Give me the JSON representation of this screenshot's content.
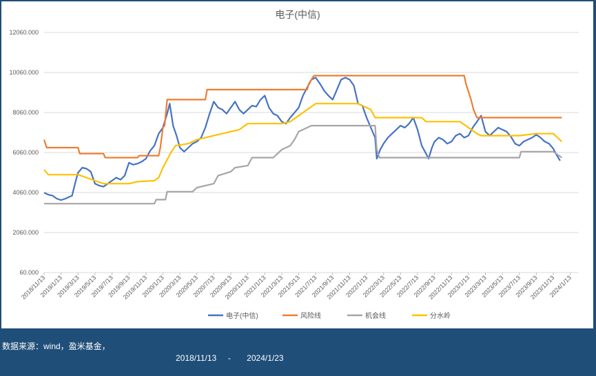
{
  "footer": {
    "source": "数据来源：wind，盈米基金，",
    "range": "2018/11/13     -       2024/1/23"
  },
  "chart_data": {
    "type": "line",
    "title": "电子(中信)",
    "ylim": [
      60,
      12060
    ],
    "yticks": [
      "12060.000",
      "10060.000",
      "8060.000",
      "6060.000",
      "4060.000",
      "2060.000",
      "60.000"
    ],
    "xticks": [
      "2018/11/13",
      "2019/1/13",
      "2019/3/13",
      "2019/5/13",
      "2019/7/13",
      "2019/9/13",
      "2019/11/13",
      "2020/1/13",
      "2020/3/13",
      "2020/5/13",
      "2020/7/13",
      "2020/9/13",
      "2020/11/13",
      "2021/1/13",
      "2021/3/13",
      "2021/5/13",
      "2021/7/13",
      "2021/9/13",
      "2021/11/13",
      "2022/1/13",
      "2022/3/13",
      "2022/5/13",
      "2022/7/13",
      "2022/9/13",
      "2022/11/13",
      "2023/1/13",
      "2023/3/13",
      "2023/5/13",
      "2023/7/13",
      "2023/9/13",
      "2023/11/13",
      "2024/1/13"
    ],
    "grid": true,
    "legend_position": "bottom",
    "x_unit": "months since 2018/11/13",
    "series": [
      {
        "name": "电子(中信)",
        "color": "#4472c4",
        "points": [
          [
            0,
            4050
          ],
          [
            0.5,
            3950
          ],
          [
            1,
            3900
          ],
          [
            1.5,
            3750
          ],
          [
            2,
            3680
          ],
          [
            2.5,
            3750
          ],
          [
            3,
            3850
          ],
          [
            3.3,
            3900
          ],
          [
            3.7,
            4600
          ],
          [
            4,
            5050
          ],
          [
            4.5,
            5300
          ],
          [
            5,
            5250
          ],
          [
            5.5,
            5100
          ],
          [
            6,
            4500
          ],
          [
            6.5,
            4400
          ],
          [
            7,
            4350
          ],
          [
            7.5,
            4500
          ],
          [
            8,
            4650
          ],
          [
            8.5,
            4800
          ],
          [
            9,
            4700
          ],
          [
            9.5,
            4900
          ],
          [
            10,
            5550
          ],
          [
            10.5,
            5450
          ],
          [
            11,
            5500
          ],
          [
            11.5,
            5600
          ],
          [
            12,
            5750
          ],
          [
            12.5,
            6150
          ],
          [
            13,
            6400
          ],
          [
            13.5,
            7000
          ],
          [
            14,
            7300
          ],
          [
            14.5,
            8000
          ],
          [
            14.8,
            8500
          ],
          [
            15.2,
            7400
          ],
          [
            15.6,
            6900
          ],
          [
            16,
            6300
          ],
          [
            16.5,
            6100
          ],
          [
            17,
            6300
          ],
          [
            17.5,
            6500
          ],
          [
            18,
            6600
          ],
          [
            18.5,
            6800
          ],
          [
            19,
            7300
          ],
          [
            19.5,
            8000
          ],
          [
            20,
            8600
          ],
          [
            20.5,
            8300
          ],
          [
            21,
            8200
          ],
          [
            21.5,
            8000
          ],
          [
            22,
            8300
          ],
          [
            22.5,
            8600
          ],
          [
            23,
            8200
          ],
          [
            23.5,
            8000
          ],
          [
            24,
            8200
          ],
          [
            24.5,
            8400
          ],
          [
            25,
            8350
          ],
          [
            25.5,
            8700
          ],
          [
            26,
            8900
          ],
          [
            26.5,
            8300
          ],
          [
            27,
            8000
          ],
          [
            27.5,
            7900
          ],
          [
            28,
            7600
          ],
          [
            28.5,
            7500
          ],
          [
            29,
            7800
          ],
          [
            29.5,
            8050
          ],
          [
            30,
            8300
          ],
          [
            30.5,
            8900
          ],
          [
            31,
            9300
          ],
          [
            31.5,
            9700
          ],
          [
            32,
            9800
          ],
          [
            32.5,
            9500
          ],
          [
            33,
            9150
          ],
          [
            33.5,
            8900
          ],
          [
            34,
            8700
          ],
          [
            34.5,
            9200
          ],
          [
            35,
            9700
          ],
          [
            35.5,
            9800
          ],
          [
            36,
            9700
          ],
          [
            36.5,
            9400
          ],
          [
            37,
            8500
          ],
          [
            37.5,
            8400
          ],
          [
            38,
            7800
          ],
          [
            38.5,
            7300
          ],
          [
            39,
            6800
          ],
          [
            39.2,
            5750
          ],
          [
            39.6,
            6200
          ],
          [
            40,
            6500
          ],
          [
            40.5,
            6800
          ],
          [
            41,
            7000
          ],
          [
            41.5,
            7200
          ],
          [
            42,
            7400
          ],
          [
            42.5,
            7300
          ],
          [
            43,
            7500
          ],
          [
            43.5,
            7800
          ],
          [
            44,
            7200
          ],
          [
            44.5,
            6400
          ],
          [
            45,
            6000
          ],
          [
            45.3,
            5750
          ],
          [
            45.7,
            6300
          ],
          [
            46,
            6600
          ],
          [
            46.5,
            6800
          ],
          [
            47,
            6700
          ],
          [
            47.5,
            6500
          ],
          [
            48,
            6600
          ],
          [
            48.5,
            6900
          ],
          [
            49,
            7000
          ],
          [
            49.5,
            6800
          ],
          [
            50,
            6900
          ],
          [
            50.5,
            7300
          ],
          [
            51,
            7600
          ],
          [
            51.5,
            7900
          ],
          [
            52,
            7100
          ],
          [
            52.5,
            6900
          ],
          [
            53,
            7100
          ],
          [
            53.5,
            7300
          ],
          [
            54,
            7200
          ],
          [
            54.5,
            7100
          ],
          [
            55,
            6850
          ],
          [
            55.5,
            6500
          ],
          [
            56,
            6400
          ],
          [
            56.5,
            6600
          ],
          [
            57,
            6700
          ],
          [
            57.5,
            6800
          ],
          [
            58,
            6950
          ],
          [
            58.5,
            6800
          ],
          [
            59,
            6600
          ],
          [
            59.5,
            6500
          ],
          [
            60,
            6250
          ],
          [
            60.3,
            6000
          ],
          [
            60.8,
            5650
          ]
        ]
      },
      {
        "name": "风险线",
        "color": "#ed7d31",
        "points": [
          [
            0,
            6700
          ],
          [
            0.3,
            6300
          ],
          [
            4,
            6300
          ],
          [
            4.2,
            6000
          ],
          [
            7,
            6000
          ],
          [
            7.2,
            5800
          ],
          [
            11,
            5800
          ],
          [
            11.2,
            5900
          ],
          [
            13.5,
            5900
          ],
          [
            13.7,
            6300
          ],
          [
            14,
            7300
          ],
          [
            14.2,
            7400
          ],
          [
            14.5,
            8700
          ],
          [
            19,
            8700
          ],
          [
            19.2,
            9200
          ],
          [
            31,
            9200
          ],
          [
            31.2,
            9500
          ],
          [
            31.5,
            9700
          ],
          [
            31.8,
            9900
          ],
          [
            49.5,
            9900
          ],
          [
            49.7,
            9500
          ],
          [
            50,
            9100
          ],
          [
            50.3,
            8700
          ],
          [
            50.6,
            8200
          ],
          [
            51,
            7800
          ],
          [
            61,
            7800
          ]
        ]
      },
      {
        "name": "机会线",
        "color": "#a5a5a5",
        "points": [
          [
            0,
            3500
          ],
          [
            13,
            3500
          ],
          [
            13.2,
            3700
          ],
          [
            14.3,
            3700
          ],
          [
            14.5,
            4100
          ],
          [
            17.5,
            4100
          ],
          [
            18,
            4300
          ],
          [
            20,
            4500
          ],
          [
            20.5,
            4900
          ],
          [
            22,
            5100
          ],
          [
            22.5,
            5300
          ],
          [
            24,
            5400
          ],
          [
            24.5,
            5800
          ],
          [
            27,
            5800
          ],
          [
            27.5,
            6000
          ],
          [
            28,
            6200
          ],
          [
            29,
            6400
          ],
          [
            29.5,
            6700
          ],
          [
            30,
            7100
          ],
          [
            31,
            7300
          ],
          [
            31.5,
            7400
          ],
          [
            39,
            7400
          ],
          [
            39.2,
            6200
          ],
          [
            39.5,
            5800
          ],
          [
            56,
            5800
          ],
          [
            56.2,
            6100
          ],
          [
            60,
            6100
          ],
          [
            61,
            5800
          ]
        ]
      },
      {
        "name": "分水岭",
        "color": "#ffc000",
        "points": [
          [
            0,
            5200
          ],
          [
            0.5,
            4950
          ],
          [
            4,
            4950
          ],
          [
            5,
            4800
          ],
          [
            6,
            4650
          ],
          [
            7,
            4500
          ],
          [
            10,
            4500
          ],
          [
            11,
            4600
          ],
          [
            13,
            4650
          ],
          [
            13.5,
            4800
          ],
          [
            14,
            5300
          ],
          [
            15,
            6100
          ],
          [
            15.5,
            6400
          ],
          [
            17,
            6500
          ],
          [
            18,
            6700
          ],
          [
            20,
            6900
          ],
          [
            21,
            7000
          ],
          [
            23,
            7200
          ],
          [
            24,
            7500
          ],
          [
            28,
            7500
          ],
          [
            29,
            7600
          ],
          [
            30,
            7900
          ],
          [
            31,
            8200
          ],
          [
            32,
            8500
          ],
          [
            37,
            8500
          ],
          [
            38.5,
            8200
          ],
          [
            39,
            7800
          ],
          [
            44.5,
            7800
          ],
          [
            45,
            7600
          ],
          [
            49,
            7600
          ],
          [
            50,
            7300
          ],
          [
            51,
            7000
          ],
          [
            51.5,
            6900
          ],
          [
            56,
            6900
          ],
          [
            58,
            7000
          ],
          [
            60,
            7000
          ],
          [
            61,
            6600
          ]
        ]
      }
    ]
  }
}
